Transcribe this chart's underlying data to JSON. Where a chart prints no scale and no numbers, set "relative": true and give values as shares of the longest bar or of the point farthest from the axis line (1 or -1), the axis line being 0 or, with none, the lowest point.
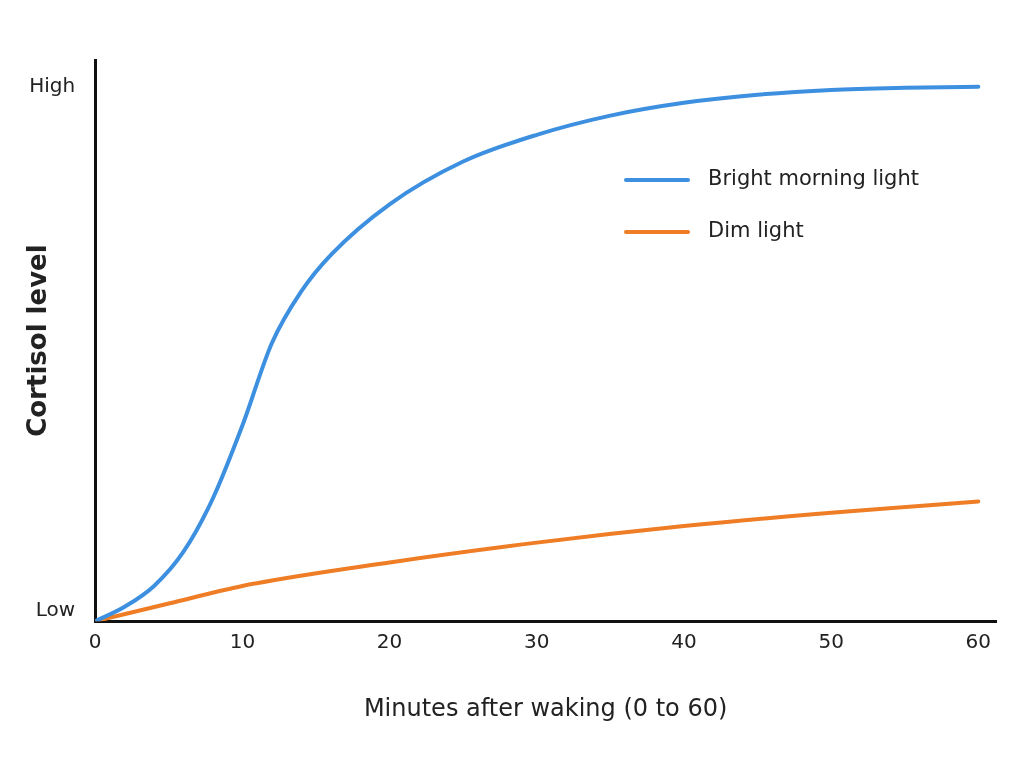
{
  "chart_data": {
    "type": "line",
    "xlabel": "Minutes after waking (0 to 60)",
    "ylabel": "Cortisol level",
    "relative": true,
    "xlim": [
      0,
      61.2
    ],
    "xticks": [
      0,
      10,
      20,
      30,
      40,
      50,
      60
    ],
    "grid": false,
    "legend": "top right",
    "marker": "none",
    "line_style": "solid",
    "annotations": [
      "Low",
      "High"
    ],
    "series": [
      {
        "name": "Bright morning light",
        "color": "#3d8fe0",
        "x": [
          0,
          2,
          4,
          6,
          8,
          10,
          12,
          14,
          16,
          20,
          25,
          30,
          35,
          40,
          45,
          50,
          55,
          60
        ],
        "values": [
          0,
          0.027,
          0.066,
          0.13,
          0.23,
          0.366,
          0.52,
          0.617,
          0.685,
          0.78,
          0.86,
          0.91,
          0.946,
          0.97,
          0.985,
          0.994,
          0.998,
          1
        ]
      },
      {
        "name": "Dim light",
        "color": "#ee7d26",
        "x": [
          0,
          5,
          10,
          20,
          30,
          40,
          50,
          60
        ],
        "values": [
          0,
          0.033,
          0.066,
          0.11,
          0.147,
          0.178,
          0.203,
          0.224
        ]
      }
    ]
  }
}
